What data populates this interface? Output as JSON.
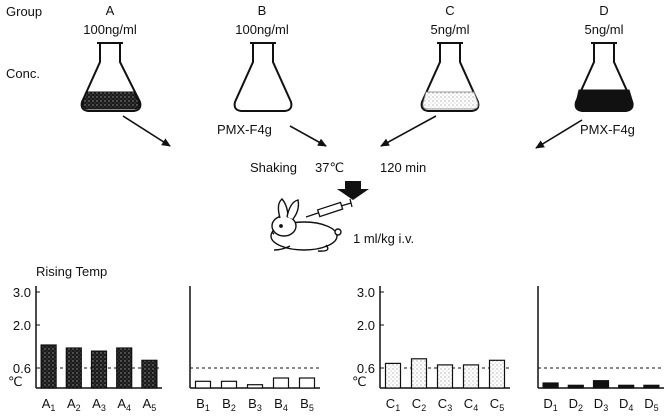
{
  "header": {
    "group_label": "Group",
    "conc_label": "Conc."
  },
  "groups": [
    {
      "letter": "A",
      "conc": "100ng/ml",
      "additive": "",
      "liquid": "dark-speckled"
    },
    {
      "letter": "B",
      "conc": "100ng/ml",
      "additive": "PMX-F4g",
      "liquid": "none"
    },
    {
      "letter": "C",
      "conc": "5ng/ml",
      "additive": "",
      "liquid": "light-dotted"
    },
    {
      "letter": "D",
      "conc": "5ng/ml",
      "additive": "PMX-F4g",
      "liquid": "solid-black"
    }
  ],
  "process": {
    "shaking": "Shaking",
    "temp": "37℃",
    "time": "120 min",
    "dose": "1 ml/kg i.v."
  },
  "chart_data": {
    "type": "bar",
    "title": "Rising Temp",
    "ylabel": "℃",
    "yticks": [
      "3.0",
      "2.0",
      "0.6"
    ],
    "threshold": 0.6,
    "panels": [
      {
        "group": "A",
        "style": "dark-speckled",
        "categories": [
          {
            "base": "A",
            "sub": "1"
          },
          {
            "base": "A",
            "sub": "2"
          },
          {
            "base": "A",
            "sub": "3"
          },
          {
            "base": "A",
            "sub": "4"
          },
          {
            "base": "A",
            "sub": "5"
          }
        ],
        "values": [
          1.35,
          1.25,
          1.15,
          1.25,
          0.85
        ]
      },
      {
        "group": "B",
        "style": "white",
        "categories": [
          {
            "base": "B",
            "sub": "1"
          },
          {
            "base": "B",
            "sub": "2"
          },
          {
            "base": "B",
            "sub": "3"
          },
          {
            "base": "B",
            "sub": "4"
          },
          {
            "base": "B",
            "sub": "5"
          }
        ],
        "values": [
          0.2,
          0.2,
          0.1,
          0.3,
          0.3
        ]
      },
      {
        "group": "C",
        "style": "light-dotted",
        "categories": [
          {
            "base": "C",
            "sub": "1"
          },
          {
            "base": "C",
            "sub": "2"
          },
          {
            "base": "C",
            "sub": "3"
          },
          {
            "base": "C",
            "sub": "4"
          },
          {
            "base": "C",
            "sub": "5"
          }
        ],
        "values": [
          0.75,
          0.9,
          0.7,
          0.7,
          0.85
        ]
      },
      {
        "group": "D",
        "style": "solid-black",
        "categories": [
          {
            "base": "D",
            "sub": "1"
          },
          {
            "base": "D",
            "sub": "2"
          },
          {
            "base": "D",
            "sub": "3"
          },
          {
            "base": "D",
            "sub": "4"
          },
          {
            "base": "D",
            "sub": "5"
          }
        ],
        "values": [
          0.15,
          0.08,
          0.22,
          0.08,
          0.08
        ]
      }
    ]
  }
}
